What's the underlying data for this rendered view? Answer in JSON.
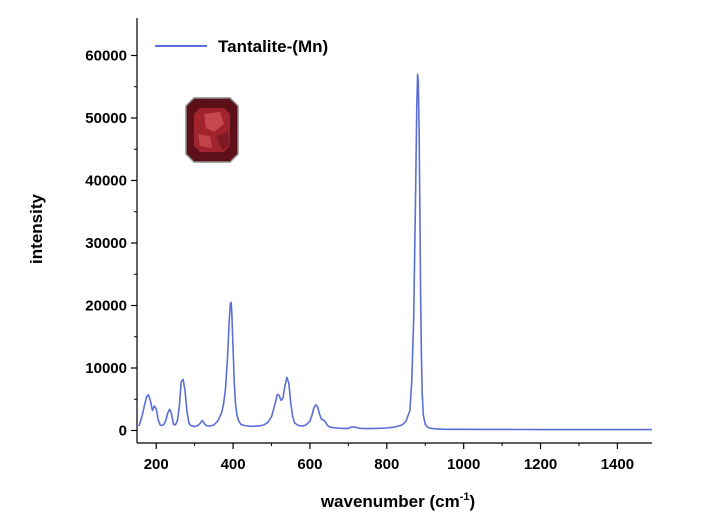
{
  "chart_data": {
    "type": "line",
    "title": "",
    "xlabel": "wavenumber (cm",
    "xlabel_sup": "-1",
    "xlabel_suffix": ")",
    "ylabel": "intensity",
    "xlim": [
      150,
      1490
    ],
    "ylim": [
      -2000,
      66000
    ],
    "xticks": [
      200,
      400,
      600,
      800,
      1000,
      1200,
      1400
    ],
    "yticks": [
      0,
      10000,
      20000,
      30000,
      40000,
      50000,
      60000
    ],
    "grid": false,
    "legend_position": "top-left",
    "series": [
      {
        "name": "Tantalite-(Mn)",
        "color": "#5b6fd6",
        "x": [
          155,
          160,
          165,
          170,
          175,
          180,
          185,
          190,
          195,
          200,
          205,
          210,
          215,
          220,
          225,
          230,
          235,
          240,
          245,
          250,
          255,
          260,
          265,
          270,
          275,
          280,
          285,
          290,
          295,
          300,
          305,
          310,
          315,
          320,
          325,
          330,
          340,
          350,
          360,
          370,
          375,
          380,
          385,
          390,
          393,
          395,
          397,
          400,
          403,
          406,
          410,
          415,
          420,
          430,
          440,
          450,
          460,
          470,
          480,
          490,
          500,
          505,
          510,
          515,
          520,
          525,
          530,
          535,
          540,
          545,
          550,
          555,
          560,
          570,
          580,
          590,
          600,
          605,
          610,
          615,
          620,
          625,
          630,
          635,
          640,
          645,
          650,
          660,
          670,
          680,
          690,
          700,
          710,
          720,
          730,
          740,
          760,
          780,
          800,
          820,
          840,
          850,
          860,
          865,
          870,
          875,
          878,
          880,
          882,
          884,
          886,
          888,
          890,
          892,
          895,
          900,
          905,
          910,
          920,
          930,
          950,
          1000,
          1050,
          1100,
          1150,
          1200,
          1250,
          1300,
          1350,
          1400,
          1450,
          1490
        ],
        "values": [
          700,
          1600,
          2800,
          4200,
          5400,
          5700,
          4700,
          3200,
          3900,
          3500,
          1800,
          900,
          800,
          1000,
          1600,
          2800,
          3400,
          2600,
          1000,
          900,
          1600,
          3800,
          7800,
          8200,
          6400,
          3000,
          1200,
          800,
          700,
          650,
          700,
          900,
          1200,
          1600,
          1100,
          800,
          700,
          900,
          1500,
          2800,
          4200,
          6500,
          11000,
          17500,
          20300,
          20500,
          18500,
          13000,
          8000,
          4500,
          2500,
          1500,
          1000,
          800,
          700,
          650,
          700,
          750,
          900,
          1300,
          2200,
          3300,
          4500,
          5800,
          5600,
          4800,
          5200,
          7200,
          8500,
          7600,
          4500,
          2200,
          1200,
          800,
          700,
          900,
          1500,
          2400,
          3600,
          4100,
          3800,
          2600,
          1800,
          1700,
          1400,
          900,
          600,
          450,
          400,
          350,
          300,
          350,
          600,
          500,
          350,
          300,
          300,
          350,
          400,
          550,
          900,
          1500,
          3200,
          8000,
          18000,
          38000,
          52000,
          57000,
          56000,
          48000,
          35000,
          22000,
          12000,
          6000,
          2500,
          1000,
          600,
          400,
          300,
          250,
          200,
          200,
          180,
          170,
          160,
          150,
          150,
          150,
          150,
          140,
          140,
          140
        ]
      }
    ]
  },
  "inset_image": {
    "kind": "gemstone",
    "description_icon": "emerald-cut-red-gem",
    "color_main": "#a0232e",
    "color_dark": "#5e1018",
    "color_light": "#e86a6a",
    "color_border": "#8a8a8a"
  },
  "colors": {
    "axis": "#000000",
    "background": "#ffffff"
  }
}
